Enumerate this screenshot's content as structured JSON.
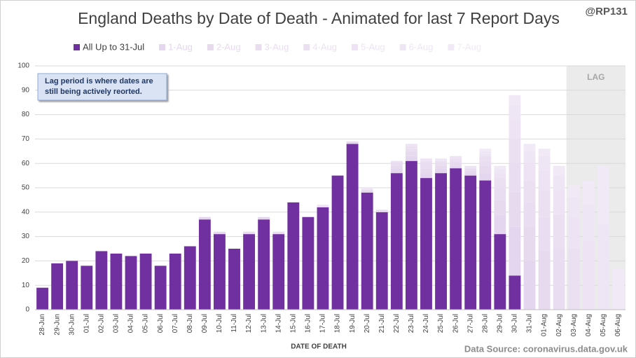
{
  "chart_data": {
    "type": "stacked_bar",
    "title": "England Deaths by Date of Death - Animated for last 7 Report Days",
    "watermark": "@RP131",
    "xlabel": "DATE OF DEATH",
    "source": "Data Source: coronavirus.data.gov.uk",
    "annotation": [
      "Lag period is where dates are",
      "still being actively reorted."
    ],
    "lag_label": "LAG",
    "lag_start": "03-Aug",
    "categories": [
      "28-Jun",
      "29-Jun",
      "30-Jun",
      "01-Jul",
      "02-Jul",
      "03-Jul",
      "04-Jul",
      "05-Jul",
      "06-Jul",
      "07-Jul",
      "08-Jul",
      "09-Jul",
      "10-Jul",
      "11-Jul",
      "12-Jul",
      "13-Jul",
      "14-Jul",
      "15-Jul",
      "16-Jul",
      "17-Jul",
      "18-Jul",
      "19-Jul",
      "20-Jul",
      "21-Jul",
      "22-Jul",
      "23-Jul",
      "24-Jul",
      "25-Jul",
      "26-Jul",
      "27-Jul",
      "28-Jul",
      "29-Jul",
      "30-Jul",
      "31-Jul",
      "01-Aug",
      "02-Aug",
      "03-Aug",
      "04-Aug",
      "05-Aug",
      "06-Aug"
    ],
    "series": [
      {
        "name": "All Up to 31-Jul",
        "color": "#7030a0",
        "values": [
          9,
          19,
          20,
          18,
          24,
          23,
          22,
          23,
          18,
          23,
          26,
          37,
          31,
          25,
          31,
          37,
          31,
          44,
          38,
          42,
          55,
          68,
          48,
          40,
          56,
          61,
          54,
          56,
          58,
          55,
          53,
          31,
          14,
          0,
          0,
          0,
          0,
          0,
          0,
          0
        ]
      },
      {
        "name": "1-Aug",
        "color": "#e4d6ee",
        "values": [
          0,
          0,
          0,
          0,
          0,
          0,
          0,
          0,
          0,
          0,
          0,
          1,
          0,
          0,
          0,
          1,
          0,
          0,
          0,
          0,
          0,
          0,
          1,
          0,
          2,
          2,
          2,
          2,
          1,
          1,
          3,
          8,
          20,
          20,
          0,
          0,
          0,
          0,
          0,
          0
        ]
      },
      {
        "name": "2-Aug",
        "color": "#e7daef",
        "values": [
          0,
          0,
          0,
          0,
          0,
          0,
          0,
          0,
          0,
          0,
          0,
          0,
          1,
          0,
          0,
          0,
          0,
          0,
          0,
          0,
          0,
          1,
          0,
          0,
          1,
          2,
          2,
          1,
          1,
          1,
          3,
          6,
          14,
          14,
          24,
          0,
          0,
          0,
          0,
          0
        ]
      },
      {
        "name": "3-Aug",
        "color": "#e9ddf1",
        "values": [
          0,
          0,
          0,
          0,
          0,
          0,
          0,
          0,
          0,
          0,
          0,
          0,
          0,
          0,
          1,
          0,
          0,
          0,
          0,
          0,
          0,
          0,
          0,
          1,
          1,
          1,
          2,
          1,
          1,
          1,
          2,
          5,
          12,
          10,
          14,
          25,
          0,
          0,
          0,
          0
        ]
      },
      {
        "name": "4-Aug",
        "color": "#ebe0f2",
        "values": [
          0,
          0,
          0,
          0,
          0,
          0,
          0,
          0,
          0,
          0,
          0,
          0,
          0,
          0,
          0,
          0,
          1,
          0,
          0,
          0,
          0,
          0,
          0,
          0,
          1,
          1,
          1,
          1,
          1,
          0,
          2,
          4,
          10,
          9,
          11,
          14,
          25,
          0,
          0,
          0
        ]
      },
      {
        "name": "5-Aug",
        "color": "#ede3f4",
        "values": [
          0,
          0,
          0,
          0,
          0,
          0,
          0,
          0,
          0,
          0,
          0,
          0,
          0,
          0,
          0,
          0,
          0,
          0,
          0,
          1,
          0,
          0,
          0,
          0,
          0,
          1,
          1,
          0,
          1,
          1,
          1,
          2,
          8,
          7,
          8,
          10,
          13,
          28,
          0,
          0
        ]
      },
      {
        "name": "6-Aug",
        "color": "#efe6f5",
        "values": [
          0,
          0,
          0,
          0,
          0,
          0,
          0,
          0,
          0,
          0,
          0,
          0,
          0,
          0,
          0,
          0,
          0,
          0,
          0,
          0,
          0,
          0,
          1,
          0,
          0,
          0,
          0,
          1,
          0,
          0,
          1,
          2,
          6,
          5,
          6,
          6,
          8,
          15,
          35,
          0
        ]
      },
      {
        "name": "7-Aug",
        "color": "#f1e9f6",
        "values": [
          0,
          0,
          0,
          0,
          0,
          0,
          0,
          0,
          0,
          0,
          0,
          0,
          0,
          0,
          0,
          0,
          0,
          0,
          0,
          0,
          0,
          0,
          0,
          0,
          0,
          0,
          0,
          0,
          0,
          0,
          1,
          1,
          4,
          3,
          3,
          4,
          5,
          10,
          24,
          17
        ]
      }
    ],
    "ylim": [
      0,
      100
    ],
    "yticks": [
      0,
      10,
      20,
      30,
      40,
      50,
      60,
      70,
      80,
      90,
      100
    ],
    "grid": true
  }
}
